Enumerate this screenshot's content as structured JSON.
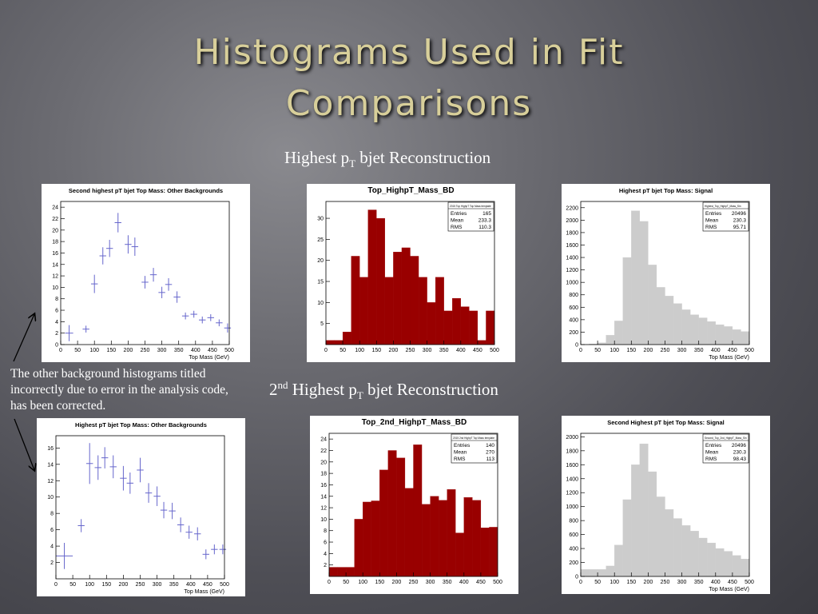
{
  "slide": {
    "title_line1": "Histograms Used in Fit",
    "title_line2": "Comparisons",
    "sub1_pre": "Highest p",
    "sub1_sub": "T",
    "sub1_post": " bjet Reconstruction",
    "sub2_num": "2",
    "sub2_sup": "nd",
    "sub2_pre": " Highest p",
    "sub2_sub": "T",
    "sub2_post": " bjet Reconstruction",
    "note": "The other background histograms titled incorrectly due to error in the analysis code, has been corrected."
  },
  "colors": {
    "red": "#990000",
    "grey": "#cccccc",
    "marker": "#6666cc"
  },
  "chart_data": [
    {
      "type": "scatter",
      "title": "Second highest pT bjet Top Mass: Other Backgrounds",
      "xlabel": "Top Mass (GeV)",
      "xlim": [
        0,
        500
      ],
      "ylim": [
        0,
        25
      ],
      "xticks": [
        0,
        50,
        100,
        150,
        200,
        250,
        300,
        350,
        400,
        450,
        500
      ],
      "yticks": [
        0,
        2,
        4,
        6,
        8,
        10,
        12,
        14,
        16,
        18,
        20,
        22,
        24
      ],
      "x": [
        25,
        75,
        100,
        125,
        145,
        170,
        200,
        220,
        250,
        275,
        300,
        320,
        345,
        370,
        395,
        420,
        445,
        470,
        495
      ],
      "y": [
        2,
        2.7,
        10.6,
        15.5,
        16.8,
        21.3,
        17.5,
        17.1,
        10.9,
        12.2,
        9.1,
        10.5,
        8.3,
        5,
        5.3,
        4.3,
        4.7,
        3.8,
        2.9
      ],
      "yerr": [
        1.4,
        0.6,
        1.6,
        1.5,
        1.5,
        1.7,
        1.6,
        1.6,
        1.1,
        1.2,
        1,
        1.1,
        1,
        0.6,
        0.6,
        0.6,
        0.6,
        0.6,
        0.8
      ],
      "xerr": [
        12,
        10,
        10,
        10,
        10,
        10,
        10,
        10,
        10,
        10,
        10,
        10,
        10,
        10,
        10,
        10,
        10,
        10,
        10
      ]
    },
    {
      "type": "bar",
      "title": "Top_HighpT_Mass_BD",
      "xlabel": "",
      "xlim": [
        0,
        500
      ],
      "ylim": [
        0,
        34
      ],
      "xticks": [
        0,
        50,
        100,
        150,
        200,
        250,
        300,
        350,
        400,
        450,
        500
      ],
      "yticks": [
        5,
        10,
        15,
        20,
        25,
        30
      ],
      "bin_edges": [
        0,
        25,
        50,
        75,
        100,
        125,
        150,
        175,
        200,
        225,
        250,
        275,
        300,
        325,
        350,
        375,
        400,
        425,
        450,
        475,
        500
      ],
      "values": [
        1,
        1,
        3,
        21,
        16,
        32,
        30,
        16,
        22,
        23,
        21,
        16,
        10,
        16,
        8,
        11,
        9,
        8,
        1,
        8
      ],
      "stats": {
        "entries": "165",
        "mean": "233.3",
        "rms": "110.3"
      },
      "legend_title": "2015 Top HighpT Top Mass template"
    },
    {
      "type": "bar",
      "title": "Highest pT bjet Top Mass: Signal",
      "xlabel": "Top Mass (GeV)",
      "xlim": [
        0,
        500
      ],
      "ylim": [
        0,
        2300
      ],
      "xticks": [
        0,
        50,
        100,
        150,
        200,
        250,
        300,
        350,
        400,
        450,
        500
      ],
      "yticks": [
        0,
        200,
        400,
        600,
        800,
        1000,
        1200,
        1400,
        1600,
        1800,
        2000,
        2200
      ],
      "bin_edges": [
        0,
        25,
        50,
        75,
        100,
        125,
        150,
        175,
        200,
        225,
        250,
        275,
        300,
        325,
        350,
        375,
        400,
        425,
        450,
        475,
        500
      ],
      "values": [
        0,
        10,
        30,
        150,
        380,
        1400,
        2150,
        1980,
        1280,
        920,
        780,
        660,
        560,
        480,
        430,
        370,
        320,
        290,
        240,
        210
      ],
      "stats": {
        "entries": "20496",
        "mean": "230.3",
        "rms": "95.71"
      },
      "legend_title": "Highest_Top_HighpT_Mass_Sin"
    },
    {
      "type": "scatter",
      "title": "Highest pT bjet Top Mass: Other Backgrounds",
      "xlabel": "Top Mass (GeV)",
      "xlim": [
        0,
        500
      ],
      "ylim": [
        0,
        17.5
      ],
      "xticks": [
        0,
        50,
        100,
        150,
        200,
        250,
        300,
        350,
        400,
        450,
        500
      ],
      "yticks": [
        2,
        4,
        6,
        8,
        10,
        12,
        14,
        16
      ],
      "x": [
        25,
        75,
        100,
        125,
        145,
        170,
        200,
        220,
        250,
        275,
        300,
        320,
        345,
        370,
        395,
        420,
        445,
        470,
        495
      ],
      "y": [
        2.8,
        6.5,
        14.1,
        13.6,
        14.8,
        13.7,
        12.3,
        11.7,
        13.3,
        10.5,
        10.1,
        8.4,
        8.3,
        6.6,
        5.7,
        5.5,
        3,
        3.6,
        3.6
      ],
      "yerr": [
        1.6,
        0.8,
        2.5,
        1.5,
        1.3,
        1.4,
        1.5,
        1.3,
        1.5,
        1.2,
        1.2,
        1,
        1,
        0.9,
        0.8,
        0.8,
        0.6,
        0.6,
        0.6
      ],
      "xerr": [
        25,
        10,
        10,
        10,
        10,
        10,
        10,
        10,
        10,
        10,
        10,
        10,
        10,
        10,
        10,
        10,
        10,
        10,
        10
      ]
    },
    {
      "type": "bar",
      "title": "Top_2nd_HighpT_Mass_BD",
      "xlabel": "",
      "xlim": [
        0,
        500
      ],
      "ylim": [
        0,
        25
      ],
      "xticks": [
        0,
        50,
        100,
        150,
        200,
        250,
        300,
        350,
        400,
        450,
        500
      ],
      "yticks": [
        2,
        4,
        6,
        8,
        10,
        12,
        14,
        16,
        18,
        20,
        22,
        24
      ],
      "bin_edges": [
        0,
        25,
        50,
        75,
        100,
        125,
        150,
        175,
        200,
        225,
        250,
        275,
        300,
        325,
        350,
        375,
        400,
        425,
        450,
        475,
        500
      ],
      "values": [
        1.6,
        1.6,
        1.6,
        10,
        13,
        13.2,
        18.6,
        22,
        20.7,
        15.4,
        23,
        12.6,
        14,
        13.3,
        15.2,
        7.6,
        13.8,
        13.3,
        8.5,
        8.6
      ],
      "stats": {
        "entries": "140",
        "mean": "270",
        "rms": "113"
      },
      "legend_title": "2015 2nd HighpT Top Mass template"
    },
    {
      "type": "bar",
      "title": "Second Highest pT bjet Top Mass: Signal",
      "xlabel": "Top Mass (GeV)",
      "xlim": [
        0,
        500
      ],
      "ylim": [
        0,
        2050
      ],
      "xticks": [
        0,
        50,
        100,
        150,
        200,
        250,
        300,
        350,
        400,
        450,
        500
      ],
      "yticks": [
        0,
        200,
        400,
        600,
        800,
        1000,
        1200,
        1400,
        1600,
        1800,
        2000
      ],
      "bin_edges": [
        0,
        25,
        50,
        75,
        100,
        125,
        150,
        175,
        200,
        225,
        250,
        275,
        300,
        325,
        350,
        375,
        400,
        425,
        450,
        475,
        500
      ],
      "values": [
        100,
        100,
        100,
        150,
        450,
        1100,
        1600,
        1900,
        1500,
        1140,
        960,
        830,
        730,
        650,
        550,
        480,
        400,
        360,
        300,
        250
      ],
      "stats": {
        "entries": "20496",
        "mean": "230.3",
        "rms": "98.43"
      },
      "legend_title": "Second_Top_2nd_HighpT_Mass_Sin"
    }
  ]
}
